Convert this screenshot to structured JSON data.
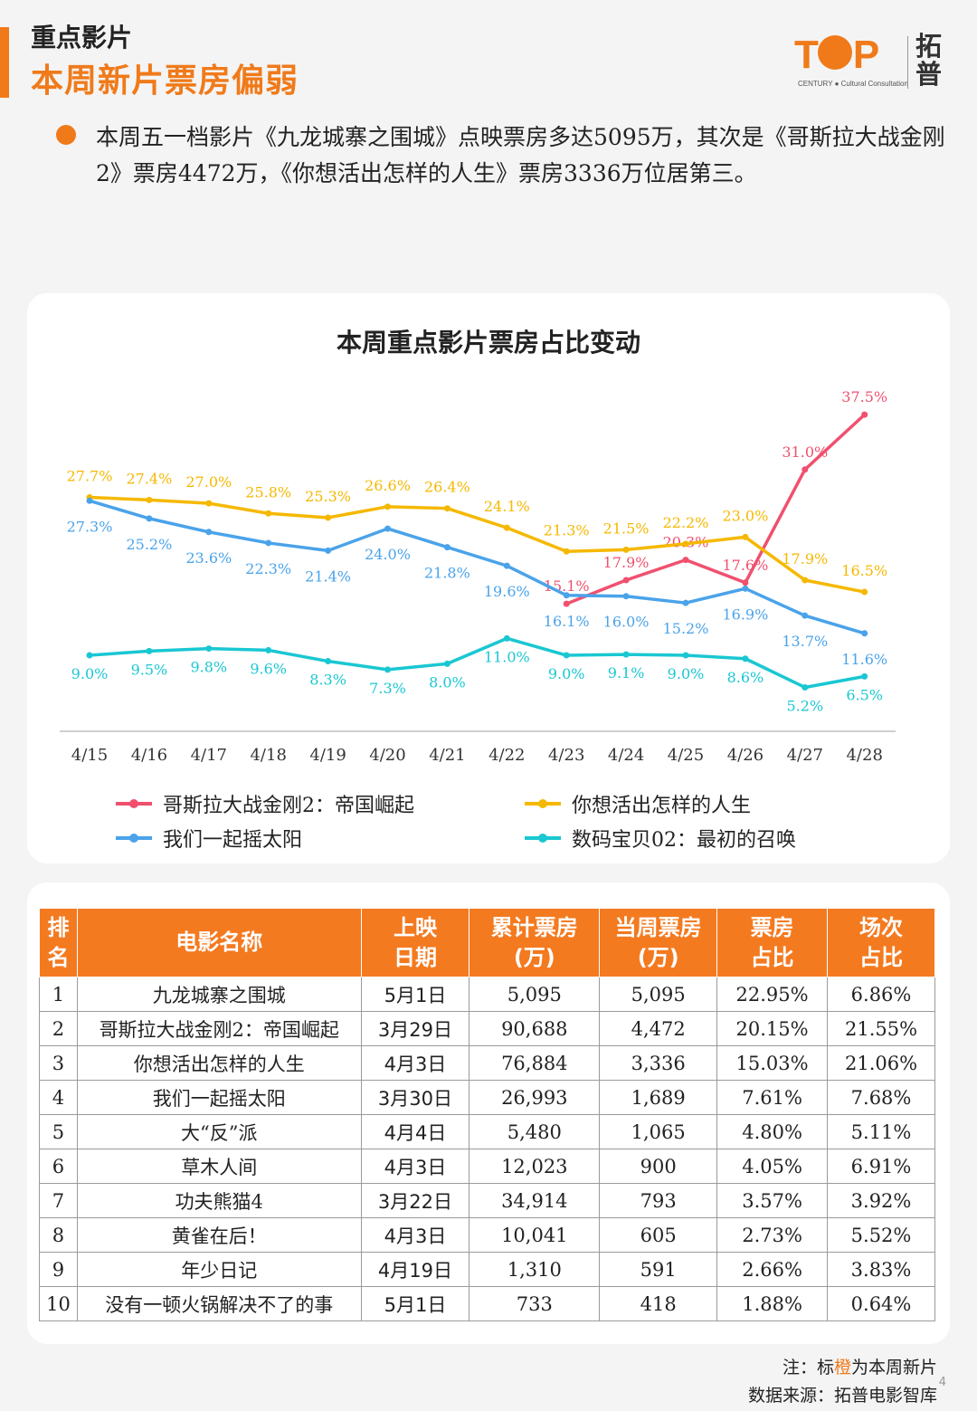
{
  "header": {
    "kicker": "重点影片",
    "headline": "本周新片票房偏弱",
    "logo_letters": "T P",
    "logo_sub": "CENTURY ● Cultural Consultation",
    "logo_cn": "拓普"
  },
  "intro": "本周五一档影片《九龙城寨之围城》点映票房多达5095万，其次是《哥斯拉大战金刚2》票房4472万，《你想活出怎样的人生》票房3336万位居第三。",
  "chart_data": {
    "type": "line",
    "title": "本周重点影片票房占比变动",
    "categories": [
      "4/15",
      "4/16",
      "4/17",
      "4/18",
      "4/19",
      "4/20",
      "4/21",
      "4/22",
      "4/23",
      "4/24",
      "4/25",
      "4/26",
      "4/27",
      "4/28"
    ],
    "ylim": [
      0,
      45
    ],
    "grid": false,
    "legend": "bottom",
    "series": [
      {
        "name": "哥斯拉大战金刚2：帝国崛起",
        "color": "#f0506e",
        "values": [
          null,
          null,
          null,
          null,
          null,
          null,
          null,
          null,
          15.1,
          17.9,
          20.3,
          17.6,
          31.0,
          37.5
        ],
        "labels": [
          "",
          "",
          "",
          "",
          "",
          "",
          "",
          "",
          "15.1%",
          "17.9%",
          "20.3%",
          "17.6%",
          "31.0%",
          "37.5%"
        ]
      },
      {
        "name": "你想活出怎样的人生",
        "color": "#f5b800",
        "values": [
          27.7,
          27.4,
          27.0,
          25.8,
          25.3,
          26.6,
          26.4,
          24.1,
          21.3,
          21.5,
          22.2,
          23.0,
          17.9,
          16.5
        ],
        "labels": [
          "27.7%",
          "27.4%",
          "27.0%",
          "25.8%",
          "25.3%",
          "26.6%",
          "26.4%",
          "24.1%",
          "21.3%",
          "21.5%",
          "22.2%",
          "23.0%",
          "17.9%",
          "16.5%"
        ]
      },
      {
        "name": "我们一起摇太阳",
        "color": "#4aa3ea",
        "values": [
          27.3,
          25.2,
          23.6,
          22.3,
          21.4,
          24.0,
          21.8,
          19.6,
          16.1,
          16.0,
          15.2,
          16.9,
          13.7,
          11.6
        ],
        "labels": [
          "27.3%",
          "25.2%",
          "23.6%",
          "22.3%",
          "21.4%",
          "24.0%",
          "21.8%",
          "19.6%",
          "16.1%",
          "16.0%",
          "15.2%",
          "16.9%",
          "13.7%",
          "11.6%"
        ]
      },
      {
        "name": "数码宝贝02：最初的召唤",
        "color": "#19c7d2",
        "values": [
          9.0,
          9.5,
          9.8,
          9.6,
          8.3,
          7.3,
          8.0,
          11.0,
          9.0,
          9.1,
          9.0,
          8.6,
          5.2,
          6.5
        ],
        "labels": [
          "9.0%",
          "9.5%",
          "9.8%",
          "9.6%",
          "8.3%",
          "7.3%",
          "8.0%",
          "11.0%",
          "9.0%",
          "9.1%",
          "9.0%",
          "8.6%",
          "5.2%",
          "6.5%"
        ]
      }
    ]
  },
  "table": {
    "headers": [
      {
        "l1": "排",
        "l2": "名"
      },
      {
        "l1": "电影名称",
        "l2": ""
      },
      {
        "l1": "上映",
        "l2": "日期"
      },
      {
        "l1": "累计票房",
        "l2": "(万)"
      },
      {
        "l1": "当周票房",
        "l2": "(万)"
      },
      {
        "l1": "票房",
        "l2": "占比"
      },
      {
        "l1": "场次",
        "l2": "占比"
      }
    ],
    "rows": [
      [
        "1",
        "九龙城寨之围城",
        "5月1日",
        "5,095",
        "5,095",
        "22.95%",
        "6.86%"
      ],
      [
        "2",
        "哥斯拉大战金刚2：帝国崛起",
        "3月29日",
        "90,688",
        "4,472",
        "20.15%",
        "21.55%"
      ],
      [
        "3",
        "你想活出怎样的人生",
        "4月3日",
        "76,884",
        "3,336",
        "15.03%",
        "21.06%"
      ],
      [
        "4",
        "我们一起摇太阳",
        "3月30日",
        "26,993",
        "1,689",
        "7.61%",
        "7.68%"
      ],
      [
        "5",
        "大“反”派",
        "4月4日",
        "5,480",
        "1,065",
        "4.80%",
        "5.11%"
      ],
      [
        "6",
        "草木人间",
        "4月3日",
        "12,023",
        "900",
        "4.05%",
        "6.91%"
      ],
      [
        "7",
        "功夫熊猫4",
        "3月22日",
        "34,914",
        "793",
        "3.57%",
        "3.92%"
      ],
      [
        "8",
        "黄雀在后！",
        "4月3日",
        "10,041",
        "605",
        "2.73%",
        "5.52%"
      ],
      [
        "9",
        "年少日记",
        "4月19日",
        "1,310",
        "591",
        "2.66%",
        "3.83%"
      ],
      [
        "10",
        "没有一顿火锅解决不了的事",
        "5月1日",
        "733",
        "418",
        "1.88%",
        "0.64%"
      ]
    ]
  },
  "footer": {
    "note_prefix": "注：标",
    "note_highlight": "橙",
    "note_suffix": "为本周新片",
    "source": "数据来源：拓普电影智库",
    "page": "4"
  }
}
